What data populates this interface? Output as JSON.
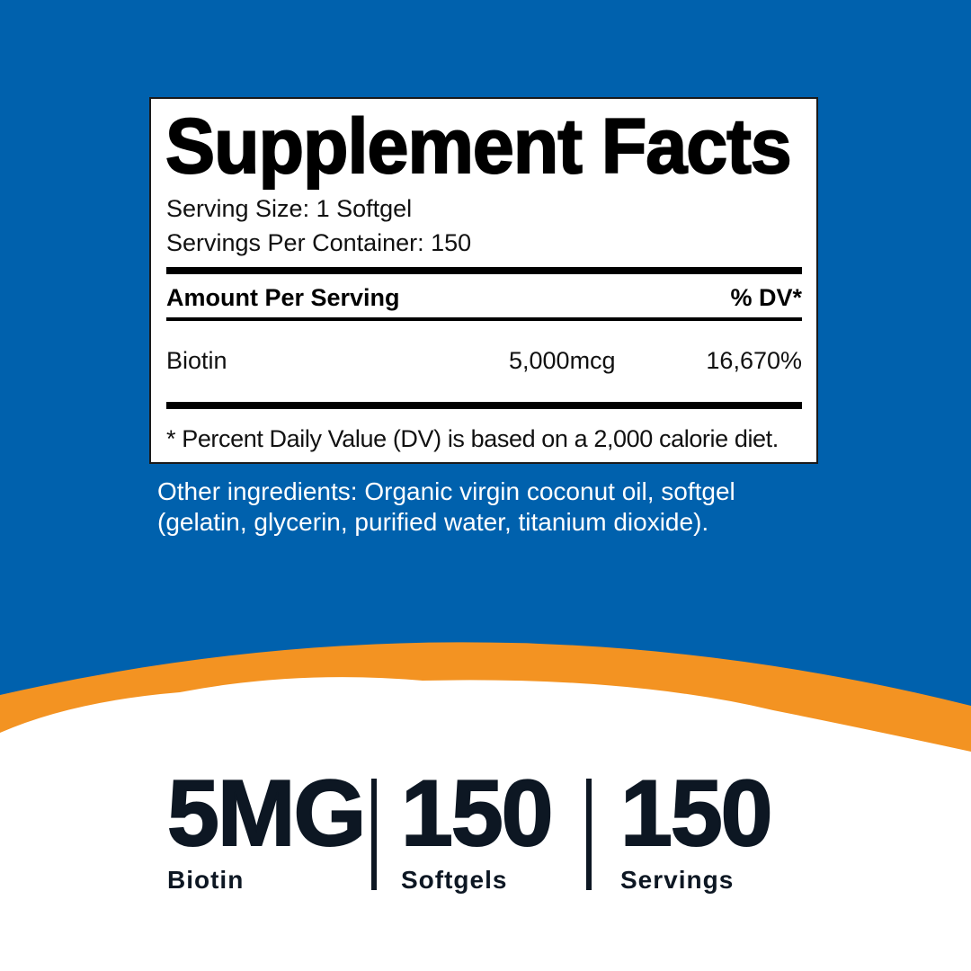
{
  "colors": {
    "background": "#0061ad",
    "accent": "#f39322",
    "text_dark": "#0d1723"
  },
  "label": {
    "title": "Supplement Facts",
    "serving_size": "Serving Size: 1 Softgel",
    "servings_per_container": "Servings Per Container: 150",
    "amount_header": "Amount Per Serving",
    "dv_header": "% DV*",
    "rows": [
      {
        "name": "Biotin",
        "amount": "5,000mcg",
        "dv": "16,670%"
      }
    ],
    "footnote": "* Percent Daily Value (DV) is based on a 2,000 calorie diet."
  },
  "other_ingredients": "Other ingredients: Organic virgin coconut oil, softgel (gelatin, glycerin, purified water, titanium dioxide).",
  "stats": [
    {
      "value": "5MG",
      "label": "Biotin"
    },
    {
      "value": "150",
      "label": "Softgels"
    },
    {
      "value": "150",
      "label": "Servings"
    }
  ]
}
